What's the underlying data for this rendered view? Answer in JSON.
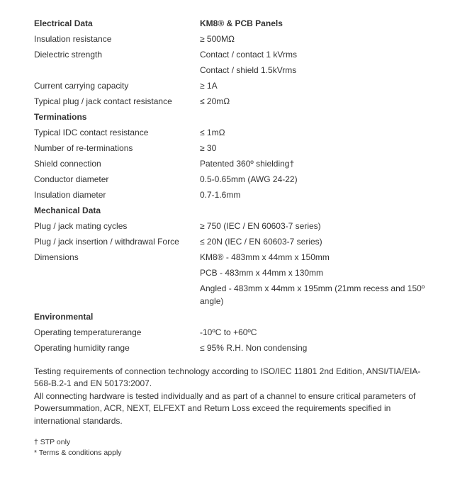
{
  "header": {
    "left": "Electrical Data",
    "right": "KM8® & PCB Panels"
  },
  "rows": [
    {
      "label": "Insulation resistance",
      "value": "≥ 500MΩ"
    },
    {
      "label": "Dielectric strength",
      "value": "Contact / contact 1 kVrms"
    },
    {
      "label": "",
      "value": "Contact / shield 1.5kVrms"
    },
    {
      "label": "Current carrying capacity",
      "value": "≥ 1A"
    },
    {
      "label": "Typical plug / jack contact resistance",
      "value": "≤ 20mΩ"
    }
  ],
  "termHeader": "Terminations",
  "termRows": [
    {
      "label": "Typical IDC contact resistance",
      "value": "≤ 1mΩ"
    },
    {
      "label": "Number of re-terminations",
      "value": "≥ 30"
    },
    {
      "label": "Shield connection",
      "value": "Patented 360º shielding†"
    },
    {
      "label": "Conductor diameter",
      "value": "0.5-0.65mm (AWG 24-22)"
    },
    {
      "label": "Insulation diameter",
      "value": "0.7-1.6mm"
    }
  ],
  "mechHeader": "Mechanical Data",
  "mechRows": [
    {
      "label": "Plug / jack mating cycles",
      "value": "≥ 750 (IEC / EN 60603-7 series)"
    },
    {
      "label": "Plug / jack insertion / withdrawal Force",
      "value": "≤ 20N (IEC / EN 60603-7 series)"
    },
    {
      "label": "Dimensions",
      "value": "KM8® - 483mm x 44mm x 150mm"
    },
    {
      "label": "",
      "value": "PCB - 483mm x 44mm x 130mm"
    },
    {
      "label": "",
      "value": "Angled - 483mm x 44mm x 195mm (21mm recess and 150º angle)"
    }
  ],
  "envHeader": "Environmental",
  "envRows": [
    {
      "label": "Operating temperaturerange",
      "value": "-10ºC to +60ºC"
    },
    {
      "label": "Operating humidity range",
      "value": "≤ 95% R.H. Non condensing"
    }
  ],
  "footer": {
    "p1": "Testing requirements of connection technology according to ISO/IEC 11801 2nd Edition, ANSI/TIA/EIA-568-B.2-1 and EN 50173:2007.",
    "p2": "All connecting hardware is tested individually and as part of a channel to ensure critical parameters of Powersummation, ACR, NEXT, ELFEXT and Return Loss exceed the requirements specified in international standards.",
    "n1": "† STP only",
    "n2": "* Terms & conditions apply"
  }
}
